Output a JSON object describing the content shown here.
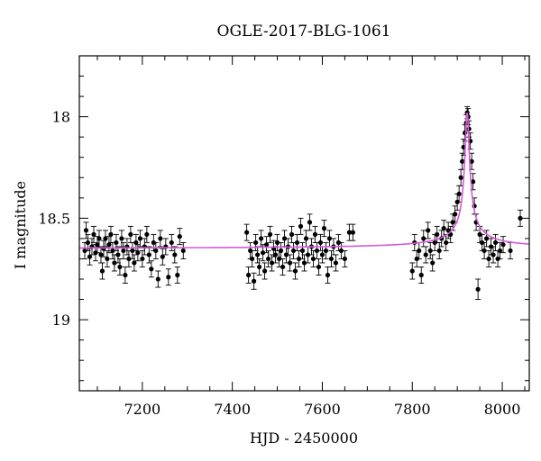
{
  "chart_data": {
    "type": "scatter",
    "title": "OGLE-2017-BLG-1061",
    "xlabel": "HJD - 2450000",
    "ylabel": "I magnitude",
    "xlim": [
      7060,
      8060
    ],
    "ylim": [
      19.35,
      17.7
    ],
    "y_inverted": true,
    "x_ticks": [
      7200,
      7400,
      7600,
      7800,
      8000
    ],
    "y_ticks": [
      18,
      18.5,
      19
    ],
    "grid": false,
    "colors": {
      "points": "#000000",
      "model": "#d65ad6"
    },
    "model": {
      "baseline": 18.65,
      "peak_x": 7922,
      "peak_y": 17.98,
      "peak_width": 14
    },
    "points": [
      {
        "x": 7072,
        "y": 18.66,
        "e": 0.04
      },
      {
        "x": 7075,
        "y": 18.56,
        "e": 0.04
      },
      {
        "x": 7079,
        "y": 18.62,
        "e": 0.04
      },
      {
        "x": 7083,
        "y": 18.69,
        "e": 0.04
      },
      {
        "x": 7088,
        "y": 18.64,
        "e": 0.04
      },
      {
        "x": 7092,
        "y": 18.58,
        "e": 0.04
      },
      {
        "x": 7096,
        "y": 18.67,
        "e": 0.04
      },
      {
        "x": 7100,
        "y": 18.63,
        "e": 0.04
      },
      {
        "x": 7104,
        "y": 18.6,
        "e": 0.04
      },
      {
        "x": 7108,
        "y": 18.68,
        "e": 0.04
      },
      {
        "x": 7111,
        "y": 18.76,
        "e": 0.04
      },
      {
        "x": 7114,
        "y": 18.65,
        "e": 0.04
      },
      {
        "x": 7118,
        "y": 18.6,
        "e": 0.04
      },
      {
        "x": 7122,
        "y": 18.7,
        "e": 0.04
      },
      {
        "x": 7126,
        "y": 18.63,
        "e": 0.04
      },
      {
        "x": 7130,
        "y": 18.58,
        "e": 0.04
      },
      {
        "x": 7134,
        "y": 18.66,
        "e": 0.04
      },
      {
        "x": 7138,
        "y": 18.72,
        "e": 0.04
      },
      {
        "x": 7142,
        "y": 18.62,
        "e": 0.04
      },
      {
        "x": 7146,
        "y": 18.68,
        "e": 0.04
      },
      {
        "x": 7150,
        "y": 18.74,
        "e": 0.04
      },
      {
        "x": 7154,
        "y": 18.6,
        "e": 0.04
      },
      {
        "x": 7158,
        "y": 18.66,
        "e": 0.04
      },
      {
        "x": 7162,
        "y": 18.78,
        "e": 0.04
      },
      {
        "x": 7166,
        "y": 18.64,
        "e": 0.04
      },
      {
        "x": 7170,
        "y": 18.7,
        "e": 0.04
      },
      {
        "x": 7174,
        "y": 18.58,
        "e": 0.04
      },
      {
        "x": 7178,
        "y": 18.66,
        "e": 0.04
      },
      {
        "x": 7182,
        "y": 18.72,
        "e": 0.04
      },
      {
        "x": 7186,
        "y": 18.62,
        "e": 0.04
      },
      {
        "x": 7190,
        "y": 18.67,
        "e": 0.04
      },
      {
        "x": 7195,
        "y": 18.6,
        "e": 0.04
      },
      {
        "x": 7200,
        "y": 18.7,
        "e": 0.04
      },
      {
        "x": 7205,
        "y": 18.64,
        "e": 0.04
      },
      {
        "x": 7210,
        "y": 18.58,
        "e": 0.04
      },
      {
        "x": 7215,
        "y": 18.68,
        "e": 0.04
      },
      {
        "x": 7220,
        "y": 18.75,
        "e": 0.04
      },
      {
        "x": 7225,
        "y": 18.62,
        "e": 0.04
      },
      {
        "x": 7230,
        "y": 18.66,
        "e": 0.04
      },
      {
        "x": 7235,
        "y": 18.8,
        "e": 0.04
      },
      {
        "x": 7240,
        "y": 18.6,
        "e": 0.04
      },
      {
        "x": 7245,
        "y": 18.69,
        "e": 0.04
      },
      {
        "x": 7252,
        "y": 18.64,
        "e": 0.04
      },
      {
        "x": 7258,
        "y": 18.79,
        "e": 0.04
      },
      {
        "x": 7265,
        "y": 18.62,
        "e": 0.04
      },
      {
        "x": 7272,
        "y": 18.68,
        "e": 0.04
      },
      {
        "x": 7278,
        "y": 18.78,
        "e": 0.04
      },
      {
        "x": 7283,
        "y": 18.59,
        "e": 0.04
      },
      {
        "x": 7291,
        "y": 18.66,
        "e": 0.04
      },
      {
        "x": 7432,
        "y": 18.57,
        "e": 0.04
      },
      {
        "x": 7436,
        "y": 18.78,
        "e": 0.04
      },
      {
        "x": 7440,
        "y": 18.66,
        "e": 0.04
      },
      {
        "x": 7444,
        "y": 18.7,
        "e": 0.04
      },
      {
        "x": 7448,
        "y": 18.81,
        "e": 0.04
      },
      {
        "x": 7452,
        "y": 18.62,
        "e": 0.04
      },
      {
        "x": 7456,
        "y": 18.68,
        "e": 0.04
      },
      {
        "x": 7460,
        "y": 18.74,
        "e": 0.04
      },
      {
        "x": 7464,
        "y": 18.6,
        "e": 0.04
      },
      {
        "x": 7468,
        "y": 18.67,
        "e": 0.04
      },
      {
        "x": 7472,
        "y": 18.76,
        "e": 0.04
      },
      {
        "x": 7476,
        "y": 18.63,
        "e": 0.04
      },
      {
        "x": 7480,
        "y": 18.7,
        "e": 0.04
      },
      {
        "x": 7484,
        "y": 18.58,
        "e": 0.04
      },
      {
        "x": 7488,
        "y": 18.72,
        "e": 0.04
      },
      {
        "x": 7492,
        "y": 18.65,
        "e": 0.04
      },
      {
        "x": 7496,
        "y": 18.68,
        "e": 0.04
      },
      {
        "x": 7500,
        "y": 18.62,
        "e": 0.04
      },
      {
        "x": 7504,
        "y": 18.7,
        "e": 0.04
      },
      {
        "x": 7508,
        "y": 18.66,
        "e": 0.04
      },
      {
        "x": 7512,
        "y": 18.74,
        "e": 0.04
      },
      {
        "x": 7516,
        "y": 18.6,
        "e": 0.04
      },
      {
        "x": 7520,
        "y": 18.68,
        "e": 0.04
      },
      {
        "x": 7524,
        "y": 18.64,
        "e": 0.04
      },
      {
        "x": 7528,
        "y": 18.72,
        "e": 0.04
      },
      {
        "x": 7532,
        "y": 18.58,
        "e": 0.04
      },
      {
        "x": 7536,
        "y": 18.66,
        "e": 0.04
      },
      {
        "x": 7540,
        "y": 18.76,
        "e": 0.04
      },
      {
        "x": 7544,
        "y": 18.62,
        "e": 0.04
      },
      {
        "x": 7548,
        "y": 18.7,
        "e": 0.04
      },
      {
        "x": 7552,
        "y": 18.54,
        "e": 0.04
      },
      {
        "x": 7556,
        "y": 18.66,
        "e": 0.04
      },
      {
        "x": 7560,
        "y": 18.72,
        "e": 0.04
      },
      {
        "x": 7564,
        "y": 18.6,
        "e": 0.04
      },
      {
        "x": 7568,
        "y": 18.68,
        "e": 0.04
      },
      {
        "x": 7572,
        "y": 18.52,
        "e": 0.04
      },
      {
        "x": 7576,
        "y": 18.64,
        "e": 0.04
      },
      {
        "x": 7580,
        "y": 18.7,
        "e": 0.04
      },
      {
        "x": 7584,
        "y": 18.58,
        "e": 0.04
      },
      {
        "x": 7588,
        "y": 18.66,
        "e": 0.04
      },
      {
        "x": 7592,
        "y": 18.74,
        "e": 0.04
      },
      {
        "x": 7596,
        "y": 18.62,
        "e": 0.04
      },
      {
        "x": 7600,
        "y": 18.68,
        "e": 0.04
      },
      {
        "x": 7604,
        "y": 18.55,
        "e": 0.04
      },
      {
        "x": 7608,
        "y": 18.66,
        "e": 0.04
      },
      {
        "x": 7612,
        "y": 18.78,
        "e": 0.04
      },
      {
        "x": 7616,
        "y": 18.6,
        "e": 0.04
      },
      {
        "x": 7620,
        "y": 18.7,
        "e": 0.04
      },
      {
        "x": 7625,
        "y": 18.64,
        "e": 0.04
      },
      {
        "x": 7630,
        "y": 18.72,
        "e": 0.04
      },
      {
        "x": 7636,
        "y": 18.62,
        "e": 0.04
      },
      {
        "x": 7642,
        "y": 18.66,
        "e": 0.04
      },
      {
        "x": 7650,
        "y": 18.7,
        "e": 0.04
      },
      {
        "x": 7660,
        "y": 18.57,
        "e": 0.04
      },
      {
        "x": 7668,
        "y": 18.57,
        "e": 0.04
      },
      {
        "x": 7800,
        "y": 18.76,
        "e": 0.04
      },
      {
        "x": 7805,
        "y": 18.62,
        "e": 0.04
      },
      {
        "x": 7810,
        "y": 18.7,
        "e": 0.04
      },
      {
        "x": 7815,
        "y": 18.66,
        "e": 0.04
      },
      {
        "x": 7820,
        "y": 18.78,
        "e": 0.04
      },
      {
        "x": 7825,
        "y": 18.6,
        "e": 0.04
      },
      {
        "x": 7830,
        "y": 18.68,
        "e": 0.04
      },
      {
        "x": 7835,
        "y": 18.56,
        "e": 0.04
      },
      {
        "x": 7840,
        "y": 18.66,
        "e": 0.04
      },
      {
        "x": 7845,
        "y": 18.72,
        "e": 0.04
      },
      {
        "x": 7850,
        "y": 18.62,
        "e": 0.04
      },
      {
        "x": 7855,
        "y": 18.58,
        "e": 0.04
      },
      {
        "x": 7860,
        "y": 18.66,
        "e": 0.04
      },
      {
        "x": 7865,
        "y": 18.6,
        "e": 0.04
      },
      {
        "x": 7870,
        "y": 18.55,
        "e": 0.04
      },
      {
        "x": 7875,
        "y": 18.62,
        "e": 0.04
      },
      {
        "x": 7880,
        "y": 18.56,
        "e": 0.04
      },
      {
        "x": 7885,
        "y": 18.58,
        "e": 0.04
      },
      {
        "x": 7890,
        "y": 18.52,
        "e": 0.04
      },
      {
        "x": 7895,
        "y": 18.48,
        "e": 0.04
      },
      {
        "x": 7900,
        "y": 18.42,
        "e": 0.04
      },
      {
        "x": 7904,
        "y": 18.38,
        "e": 0.04
      },
      {
        "x": 7908,
        "y": 18.3,
        "e": 0.04
      },
      {
        "x": 7911,
        "y": 18.22,
        "e": 0.04
      },
      {
        "x": 7914,
        "y": 18.15,
        "e": 0.04
      },
      {
        "x": 7917,
        "y": 18.08,
        "e": 0.04
      },
      {
        "x": 7920,
        "y": 18.03,
        "e": 0.04
      },
      {
        "x": 7922,
        "y": 17.98,
        "e": 0.03
      },
      {
        "x": 7924,
        "y": 18.0,
        "e": 0.04
      },
      {
        "x": 7926,
        "y": 18.06,
        "e": 0.04
      },
      {
        "x": 7929,
        "y": 18.12,
        "e": 0.04
      },
      {
        "x": 7932,
        "y": 18.22,
        "e": 0.04
      },
      {
        "x": 7935,
        "y": 18.32,
        "e": 0.04
      },
      {
        "x": 7938,
        "y": 18.44,
        "e": 0.04
      },
      {
        "x": 7942,
        "y": 18.52,
        "e": 0.04
      },
      {
        "x": 7946,
        "y": 18.85,
        "e": 0.05
      },
      {
        "x": 7950,
        "y": 18.58,
        "e": 0.04
      },
      {
        "x": 7955,
        "y": 18.62,
        "e": 0.04
      },
      {
        "x": 7960,
        "y": 18.66,
        "e": 0.04
      },
      {
        "x": 7965,
        "y": 18.6,
        "e": 0.04
      },
      {
        "x": 7970,
        "y": 18.7,
        "e": 0.04
      },
      {
        "x": 7975,
        "y": 18.64,
        "e": 0.04
      },
      {
        "x": 7980,
        "y": 18.68,
        "e": 0.04
      },
      {
        "x": 7985,
        "y": 18.62,
        "e": 0.04
      },
      {
        "x": 7990,
        "y": 18.7,
        "e": 0.04
      },
      {
        "x": 7995,
        "y": 18.66,
        "e": 0.04
      },
      {
        "x": 8002,
        "y": 18.63,
        "e": 0.04
      },
      {
        "x": 8018,
        "y": 18.66,
        "e": 0.04
      },
      {
        "x": 8040,
        "y": 18.5,
        "e": 0.04
      }
    ]
  }
}
